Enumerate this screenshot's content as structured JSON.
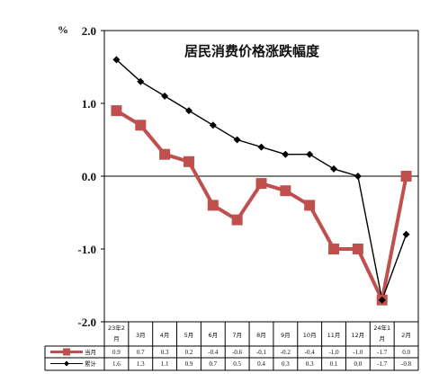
{
  "chart_data": {
    "type": "line",
    "title": "居民消费价格涨跌幅度",
    "unit": "%",
    "ylim": [
      -2.0,
      2.0
    ],
    "yticks": [
      "2.0",
      "1.0",
      "0.0",
      "-1.0",
      "-2.0"
    ],
    "categories": [
      [
        "23年2",
        "月"
      ],
      [
        "3月"
      ],
      [
        "4月"
      ],
      [
        "5月"
      ],
      [
        "6月"
      ],
      [
        "7月"
      ],
      [
        "8月"
      ],
      [
        "9月"
      ],
      [
        "10月"
      ],
      [
        "11月"
      ],
      [
        "12月"
      ],
      [
        "24年1",
        "月"
      ],
      [
        "2月"
      ]
    ],
    "grid": false,
    "legend": "table-bottom",
    "series": [
      {
        "name": "当月",
        "color": "#c0504d",
        "marker": "square",
        "values": [
          0.9,
          0.7,
          0.3,
          0.2,
          -0.4,
          -0.6,
          -0.1,
          -0.2,
          -0.4,
          -1.0,
          -1.0,
          -1.7,
          0.0
        ],
        "labels": [
          "0.9",
          "0.7",
          "0.3",
          "0.2",
          "-0.4",
          "-0.6",
          "-0.1",
          "-0.2",
          "-0.4",
          "-1.0",
          "-1.0",
          "-1.7",
          "0.0"
        ]
      },
      {
        "name": "累计",
        "color": "#000000",
        "marker": "diamond",
        "values": [
          1.6,
          1.3,
          1.1,
          0.9,
          0.7,
          0.5,
          0.4,
          0.3,
          0.3,
          0.1,
          0.0,
          -1.7,
          -0.8
        ],
        "labels": [
          "1.6",
          "1.3",
          "1.1",
          "0.9",
          "0.7",
          "0.5",
          "0.4",
          "0.3",
          "0.3",
          "0.1",
          "0.0",
          "-1.7",
          "-0.8"
        ]
      }
    ]
  }
}
